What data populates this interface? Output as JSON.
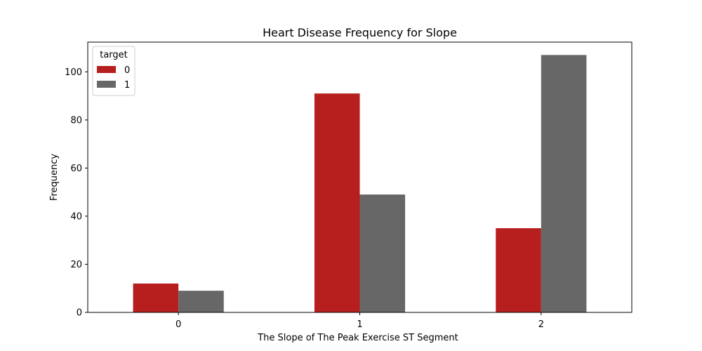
{
  "chart_data": {
    "type": "bar",
    "title": "Heart Disease Frequency for Slope",
    "xlabel": "The Slope of The Peak Exercise ST Segment",
    "ylabel": "Frequency",
    "categories": [
      "0",
      "1",
      "2"
    ],
    "series": [
      {
        "name": "0",
        "values": [
          12,
          91,
          35
        ],
        "color": "#b71f1f"
      },
      {
        "name": "1",
        "values": [
          9,
          49,
          107
        ],
        "color": "#676767"
      }
    ],
    "ylim": [
      0,
      112.35
    ],
    "yticks": [
      0,
      20,
      40,
      60,
      80,
      100
    ],
    "legend": {
      "title": "target",
      "position": "top-left"
    },
    "grid": false
  }
}
